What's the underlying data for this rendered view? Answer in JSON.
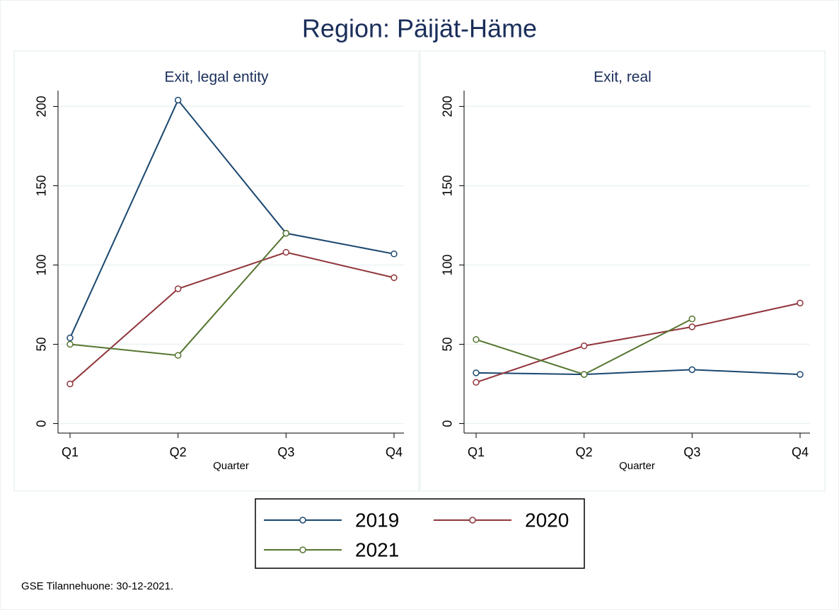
{
  "title": "Region: Päijät-Häme",
  "note": "GSE Tilannehuone: 30-12-2021.",
  "chart_data": [
    {
      "type": "line",
      "title": "Exit, legal entity",
      "xlabel": "Quarter",
      "categories": [
        "Q1",
        "Q2",
        "Q3",
        "Q4"
      ],
      "series": [
        {
          "name": "2019",
          "color": "#1a476f",
          "values": [
            54,
            204,
            120,
            107
          ]
        },
        {
          "name": "2020",
          "color": "#90353b",
          "values": [
            25,
            85,
            108,
            92
          ]
        },
        {
          "name": "2021",
          "color": "#55752f",
          "values": [
            50,
            43,
            120,
            null
          ]
        }
      ],
      "ylim": [
        -6,
        210
      ],
      "yticks": [
        0,
        50,
        100,
        150,
        200
      ],
      "grid": true
    },
    {
      "type": "line",
      "title": "Exit, real",
      "xlabel": "Quarter",
      "categories": [
        "Q1",
        "Q2",
        "Q3",
        "Q4"
      ],
      "series": [
        {
          "name": "2019",
          "color": "#1a476f",
          "values": [
            32,
            31,
            34,
            31
          ]
        },
        {
          "name": "2020",
          "color": "#90353b",
          "values": [
            26,
            49,
            61,
            76
          ]
        },
        {
          "name": "2021",
          "color": "#55752f",
          "values": [
            53,
            31,
            66,
            null
          ]
        }
      ],
      "ylim": [
        -6,
        210
      ],
      "yticks": [
        0,
        50,
        100,
        150,
        200
      ],
      "grid": true
    }
  ]
}
